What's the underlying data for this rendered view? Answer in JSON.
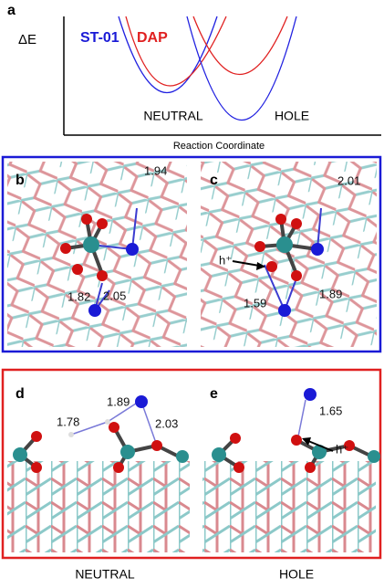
{
  "panels": {
    "a": {
      "label": "a",
      "y_axis": "ΔE",
      "x_axis": "Reaction Coordinate",
      "legend": [
        "ST-01",
        "DAP"
      ],
      "states": [
        "NEUTRAL",
        "HOLE"
      ]
    },
    "b": {
      "label": "b",
      "distances": [
        1.94,
        1.82,
        2.05
      ]
    },
    "c": {
      "label": "c",
      "distances": [
        2.01,
        1.59,
        1.89
      ],
      "annotation": "h⁺"
    },
    "d": {
      "label": "d",
      "distances": [
        1.89,
        1.78,
        2.03
      ]
    },
    "e": {
      "label": "e",
      "distances": [
        1.65
      ],
      "annotation": "h⁺"
    }
  },
  "footer": [
    "NEUTRAL",
    "HOLE"
  ]
}
